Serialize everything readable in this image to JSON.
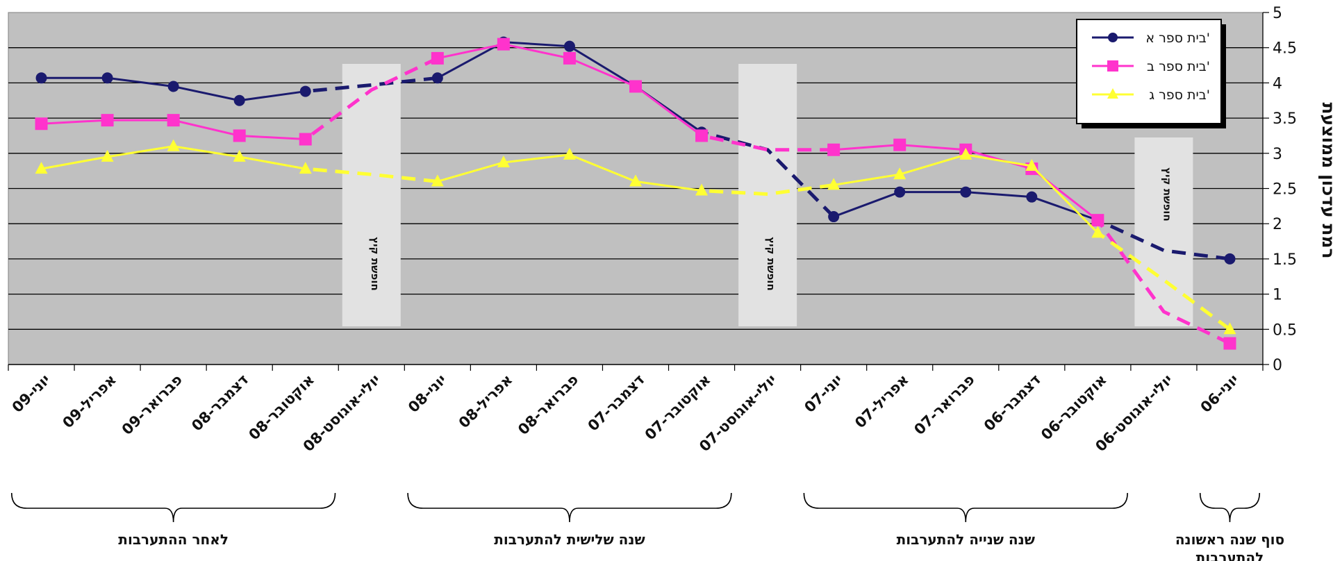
{
  "chart_data": {
    "type": "line",
    "x_direction": "right-to-left",
    "categories": [
      "יוני-06",
      "יולי-אוגוסט-06",
      "אוקטובר-06",
      "דצמבר-06",
      "פברואר-07",
      "אפריל-07",
      "יוני-07",
      "יולי-אוגוסט-07",
      "אוקטובר-07",
      "דצמבר-07",
      "פברואר-08",
      "אפריל-08",
      "יוני-08",
      "יולי-אוגוסט-08",
      "אוקטובר-08",
      "דצמבר-08",
      "פברואר-09",
      "אפריל-09",
      "יוני-09"
    ],
    "ylabel": "רמת עדכון ממוצעת",
    "ylim": [
      0,
      5
    ],
    "yticks": [
      "0",
      "0.5",
      "1",
      "1.5",
      "2",
      "2.5",
      "3",
      "3.5",
      "4",
      "4.5",
      "5"
    ],
    "grid": true,
    "legend_position": "top-right",
    "series": [
      {
        "name": "בית ספר א'",
        "color": "#1a1a6e",
        "marker": "circle",
        "values": [
          1.5,
          null,
          2.05,
          2.38,
          2.45,
          2.45,
          2.1,
          null,
          3.3,
          3.95,
          4.52,
          4.58,
          4.07,
          null,
          3.88,
          3.75,
          3.95,
          4.07,
          4.07
        ],
        "dashed_links": [
          [
            0,
            2,
            1.62
          ],
          [
            6,
            8,
            3.05
          ],
          [
            12,
            14,
            3.97
          ]
        ]
      },
      {
        "name": "בית ספר ב'",
        "color": "#ff33cc",
        "marker": "square",
        "values": [
          0.3,
          null,
          2.05,
          2.78,
          3.05,
          3.12,
          3.05,
          null,
          3.25,
          3.95,
          4.35,
          4.55,
          4.35,
          null,
          3.2,
          3.25,
          3.47,
          3.47,
          3.42
        ],
        "dashed_links": [
          [
            0,
            2,
            0.75
          ],
          [
            6,
            8,
            3.05
          ],
          [
            12,
            14,
            3.9
          ]
        ]
      },
      {
        "name": "בית ספר ג'",
        "color": "#ffff33",
        "marker": "triangle",
        "values": [
          0.5,
          null,
          1.87,
          2.82,
          2.98,
          2.7,
          2.55,
          null,
          2.47,
          2.6,
          2.98,
          2.87,
          2.6,
          null,
          2.78,
          2.95,
          3.1,
          2.95,
          2.78
        ],
        "dashed_links": [
          [
            0,
            2,
            1.2
          ],
          [
            6,
            8,
            2.42
          ],
          [
            12,
            14,
            2.7
          ]
        ]
      }
    ],
    "annotations": {
      "vacation_label": "חופשת קיץ",
      "vacation_categories": [
        1,
        7,
        13
      ],
      "periods": [
        {
          "label": "לאחר ההתערבות",
          "from": 14,
          "to": 18
        },
        {
          "label": "שנה שלישית להתערבות",
          "from": 8,
          "to": 12
        },
        {
          "label": "שנה שנייה להתערבות",
          "from": 2,
          "to": 6
        },
        {
          "label": "סוף שנה ראשונה להתערבות",
          "from": 0,
          "to": 0
        }
      ]
    }
  }
}
